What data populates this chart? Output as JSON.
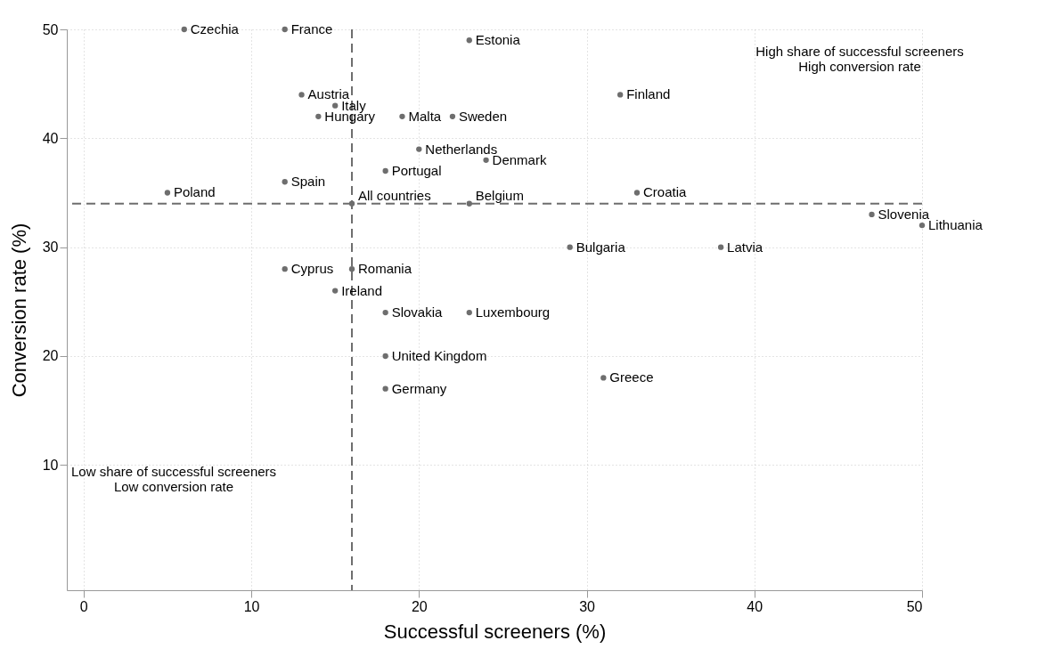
{
  "chart_data": {
    "type": "scatter",
    "xlabel": "Successful screeners (%)",
    "ylabel": "Conversion rate (%)",
    "xlim": [
      -1,
      50
    ],
    "ylim": [
      -1.5,
      50
    ],
    "xticks": [
      0,
      10,
      20,
      30,
      40,
      50
    ],
    "yticks": [
      10,
      20,
      30,
      40,
      50
    ],
    "grid": true,
    "marker": "circle",
    "series": [
      {
        "color": "#6e6e6e",
        "x": [
          6,
          12,
          23,
          13,
          15,
          14,
          19,
          22,
          32,
          20,
          24,
          18,
          12,
          5,
          33,
          16,
          23,
          47,
          50,
          29,
          38,
          12,
          16,
          15,
          18,
          23,
          18,
          18,
          31
        ],
        "values": [
          50,
          50,
          49,
          44,
          43,
          42,
          42,
          42,
          44,
          39,
          38,
          37,
          36,
          35,
          35,
          34,
          34,
          33,
          32,
          30,
          30,
          28,
          28,
          26,
          24,
          24,
          20,
          17,
          18
        ],
        "value_labels": [
          "Czechia",
          "France",
          "Estonia",
          "Austria",
          "Italy",
          "Hungary",
          "Malta",
          "Sweden",
          "Finland",
          "Netherlands",
          "Denmark",
          "Portugal",
          "Spain",
          "Poland",
          "Croatia",
          "All countries",
          "Belgium",
          "Slovenia",
          "Lithuania",
          "Bulgaria",
          "Latvia",
          "Cyprus",
          "Romania",
          "Ireland",
          "Slovakia",
          "Luxembourg",
          "United Kingdom",
          "Germany",
          "Greece"
        ]
      }
    ],
    "ref_lines": [
      {
        "axis": "x",
        "value": 16,
        "line_style": "dashed",
        "color": "#6e6e6e"
      },
      {
        "axis": "y",
        "value": 34,
        "line_style": "dashed",
        "color": "#6e6e6e"
      }
    ],
    "annotations": [
      "High share of successful screeners\nHigh conversion rate",
      "Low share of successful screeners\nLow conversion rate"
    ]
  }
}
